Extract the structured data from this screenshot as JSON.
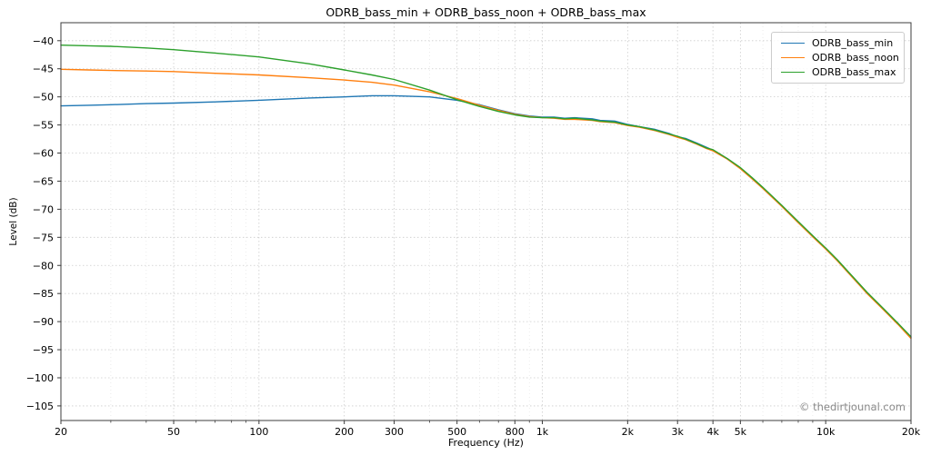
{
  "title": "ODRB_bass_min + ODRB_bass_noon + ODRB_bass_max",
  "watermark": "© thedirtjounal.com",
  "chart_data": {
    "type": "line",
    "title": "ODRB_bass_min + ODRB_bass_noon + ODRB_bass_max",
    "xlabel": "Frequency (Hz)",
    "ylabel": "Level (dB)",
    "x_scale": "log",
    "xlim": [
      20,
      20000
    ],
    "ylim": [
      -107.6,
      -36.8
    ],
    "x_ticks": {
      "values": [
        20,
        50,
        100,
        200,
        300,
        500,
        800,
        1000,
        2000,
        3000,
        4000,
        5000,
        10000,
        20000
      ],
      "labels": [
        "20",
        "50",
        "100",
        "200",
        "300",
        "500",
        "800",
        "1k",
        "2k",
        "3k",
        "4k",
        "5k",
        "10k",
        "20k"
      ]
    },
    "x_minor_ticks": [
      30,
      40,
      60,
      70,
      80,
      90,
      400,
      600,
      700,
      900,
      6000,
      7000,
      8000,
      9000
    ],
    "y_ticks": [
      -40,
      -45,
      -50,
      -55,
      -60,
      -65,
      -70,
      -75,
      -80,
      -85,
      -90,
      -95,
      -100,
      -105
    ],
    "grid": true,
    "grid_style": "dotted",
    "legend_position": "upper right",
    "x": [
      20,
      25,
      30,
      40,
      50,
      70,
      100,
      150,
      200,
      250,
      300,
      400,
      500,
      600,
      700,
      800,
      900,
      1000,
      1100,
      1200,
      1300,
      1500,
      1600,
      1800,
      2000,
      2200,
      2500,
      2800,
      3000,
      3200,
      3500,
      3800,
      4000,
      4500,
      5000,
      5500,
      6000,
      7000,
      8000,
      9000,
      10000,
      11000,
      12000,
      14000,
      16000,
      18000,
      20000
    ],
    "series": [
      {
        "name": "ODRB_bass_min",
        "color": "#1f77b4",
        "values": [
          -51.6,
          -51.5,
          -51.4,
          -51.2,
          -51.1,
          -50.9,
          -50.6,
          -50.2,
          -50.0,
          -49.8,
          -49.8,
          -50.0,
          -50.6,
          -51.4,
          -52.3,
          -53.0,
          -53.4,
          -53.6,
          -53.6,
          -53.8,
          -53.7,
          -53.9,
          -54.2,
          -54.3,
          -54.9,
          -55.3,
          -55.8,
          -56.5,
          -57.1,
          -57.4,
          -58.2,
          -59.0,
          -59.5,
          -61.0,
          -62.7,
          -64.5,
          -66.2,
          -69.4,
          -72.3,
          -74.8,
          -77.0,
          -79.1,
          -81.2,
          -84.9,
          -87.8,
          -90.4,
          -92.8
        ]
      },
      {
        "name": "ODRB_bass_noon",
        "color": "#ff7f0e",
        "values": [
          -45.1,
          -45.2,
          -45.3,
          -45.4,
          -45.5,
          -45.8,
          -46.1,
          -46.6,
          -47.0,
          -47.4,
          -47.9,
          -49.1,
          -50.3,
          -51.5,
          -52.4,
          -53.1,
          -53.5,
          -53.7,
          -53.8,
          -54.0,
          -54.0,
          -54.2,
          -54.4,
          -54.6,
          -55.1,
          -55.4,
          -56.0,
          -56.7,
          -57.2,
          -57.6,
          -58.4,
          -59.2,
          -59.6,
          -61.1,
          -62.8,
          -64.6,
          -66.3,
          -69.5,
          -72.4,
          -74.9,
          -77.1,
          -79.2,
          -81.3,
          -85.0,
          -87.9,
          -90.5,
          -93.0
        ]
      },
      {
        "name": "ODRB_bass_max",
        "color": "#2ca02c",
        "values": [
          -40.8,
          -40.9,
          -41.0,
          -41.3,
          -41.6,
          -42.2,
          -42.9,
          -44.1,
          -45.2,
          -46.1,
          -46.9,
          -48.8,
          -50.5,
          -51.7,
          -52.6,
          -53.2,
          -53.6,
          -53.7,
          -53.7,
          -53.9,
          -53.8,
          -54.1,
          -54.3,
          -54.5,
          -55.0,
          -55.3,
          -55.9,
          -56.6,
          -57.0,
          -57.5,
          -58.3,
          -59.1,
          -59.4,
          -61.0,
          -62.6,
          -64.4,
          -66.1,
          -69.3,
          -72.2,
          -74.7,
          -76.9,
          -79.0,
          -81.1,
          -84.8,
          -87.7,
          -90.3,
          -92.7
        ]
      }
    ]
  }
}
